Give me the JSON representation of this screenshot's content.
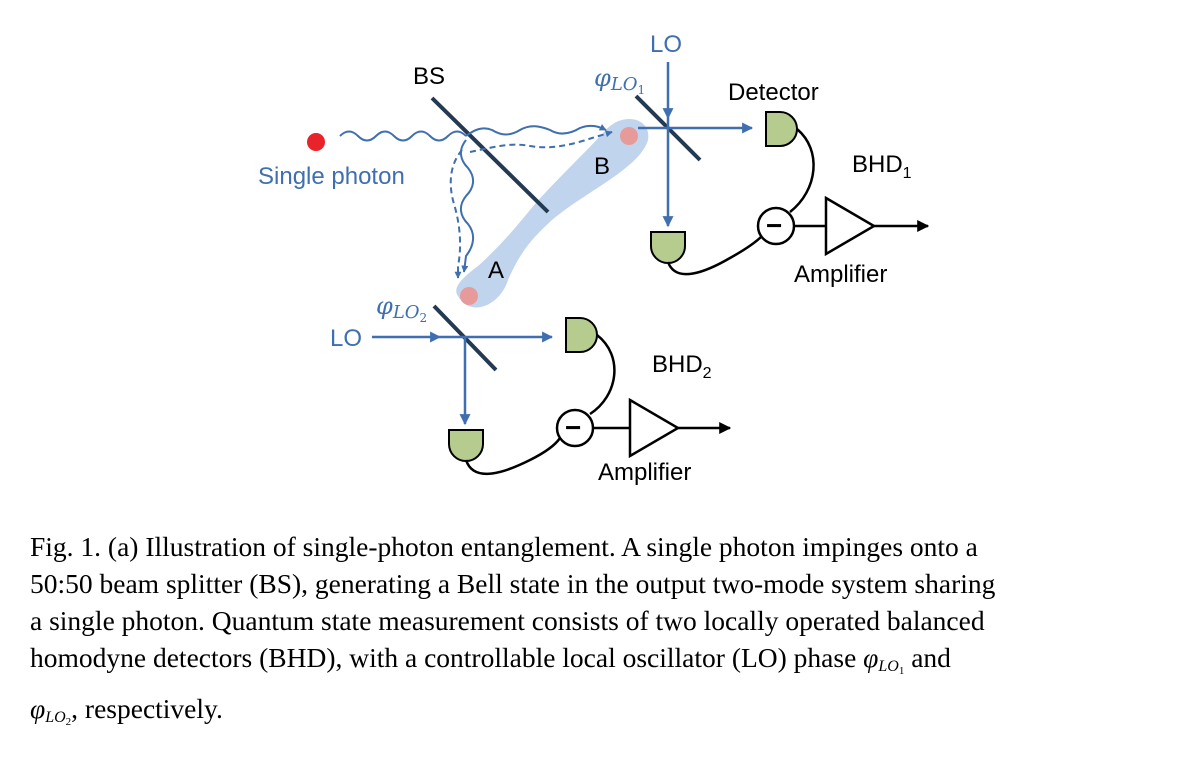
{
  "diagram": {
    "labels": {
      "bs": "BS",
      "single_photon": "Single photon",
      "mode_a": "A",
      "mode_b": "B",
      "lo_top": "LO",
      "lo_left": "LO",
      "phi_symbol": "φ",
      "phi_lo": "LO",
      "phi_sub_1": "1",
      "phi_sub_2": "2",
      "detector": "Detector",
      "bhd_1_main": "BHD",
      "bhd_1_sub": "1",
      "bhd_2_main": "BHD",
      "bhd_2_sub": "2",
      "amplifier_1": "Amplifier",
      "amplifier_2": "Amplifier",
      "minus_1": "−",
      "minus_2": "−"
    },
    "colors": {
      "beam_blue": "#3f6fae",
      "photon_red": "#e8232a",
      "mode_pink": "#e79a9a",
      "entangle_blue": "#b9cfec",
      "detector_green": "#b5cc8e",
      "splitter_navy": "#233a52"
    }
  },
  "caption": {
    "line1": "Fig. 1. (a) Illustration of single-photon entanglement. A single photon impinges onto a",
    "line2": "50:50 beam splitter (BS), generating a Bell state in the output two-mode system sharing",
    "line3": "a single photon. Quantum state measurement consists of two locally operated balanced",
    "line4_pre": "homodyne detectors (BHD), with a controllable local oscillator (LO) phase ",
    "phi": "φ",
    "lo": "LO",
    "sub1": "1",
    "sub2": "2",
    "and": " and",
    "line5_post": ", respectively."
  }
}
